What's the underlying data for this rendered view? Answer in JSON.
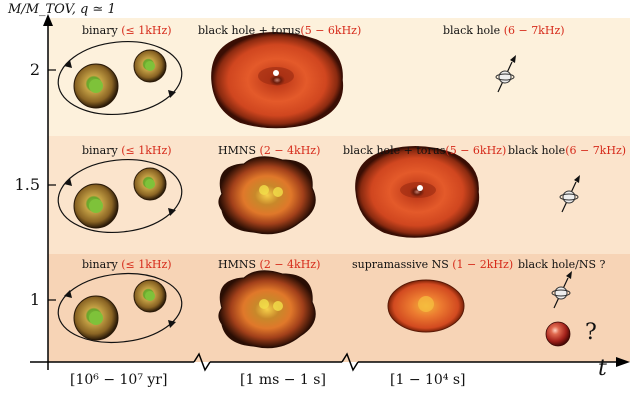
{
  "y_axis": {
    "label": "M/M_TOV, q ≃ 1",
    "ticks": [
      "2",
      "1.5",
      "1"
    ]
  },
  "x_axis": {
    "label": "t",
    "ticks": [
      "[10⁶ − 10⁷ yr]",
      "[1 ms − 1 s]",
      "[1 − 10⁴ s]"
    ]
  },
  "rows": [
    {
      "mass": "2",
      "color": "#fdf1dc",
      "stages": [
        {
          "name": "binary",
          "freq": "(≤ 1kHz)"
        },
        {
          "name": "black hole + torus",
          "freq": "(5 − 6kHz)"
        },
        {
          "name": "black hole",
          "freq": "(6 − 7kHz)"
        }
      ]
    },
    {
      "mass": "1.5",
      "color": "#fbe4cc",
      "stages": [
        {
          "name": "binary",
          "freq": "(≤ 1kHz)"
        },
        {
          "name": "HMNS",
          "freq": "(2 − 4kHz)"
        },
        {
          "name": "black hole + torus",
          "freq": "(5 − 6kHz)"
        },
        {
          "name": "black hole",
          "freq": "(6 − 7kHz)"
        }
      ]
    },
    {
      "mass": "1",
      "color": "#f7d4b6",
      "stages": [
        {
          "name": "binary",
          "freq": "(≤ 1kHz)"
        },
        {
          "name": "HMNS",
          "freq": "(2 − 4kHz)"
        },
        {
          "name": "supramassive NS",
          "freq": "(1 − 2kHz)"
        },
        {
          "name": "black hole/NS ?",
          "freq": ""
        }
      ]
    }
  ],
  "unknown_mark": "?"
}
